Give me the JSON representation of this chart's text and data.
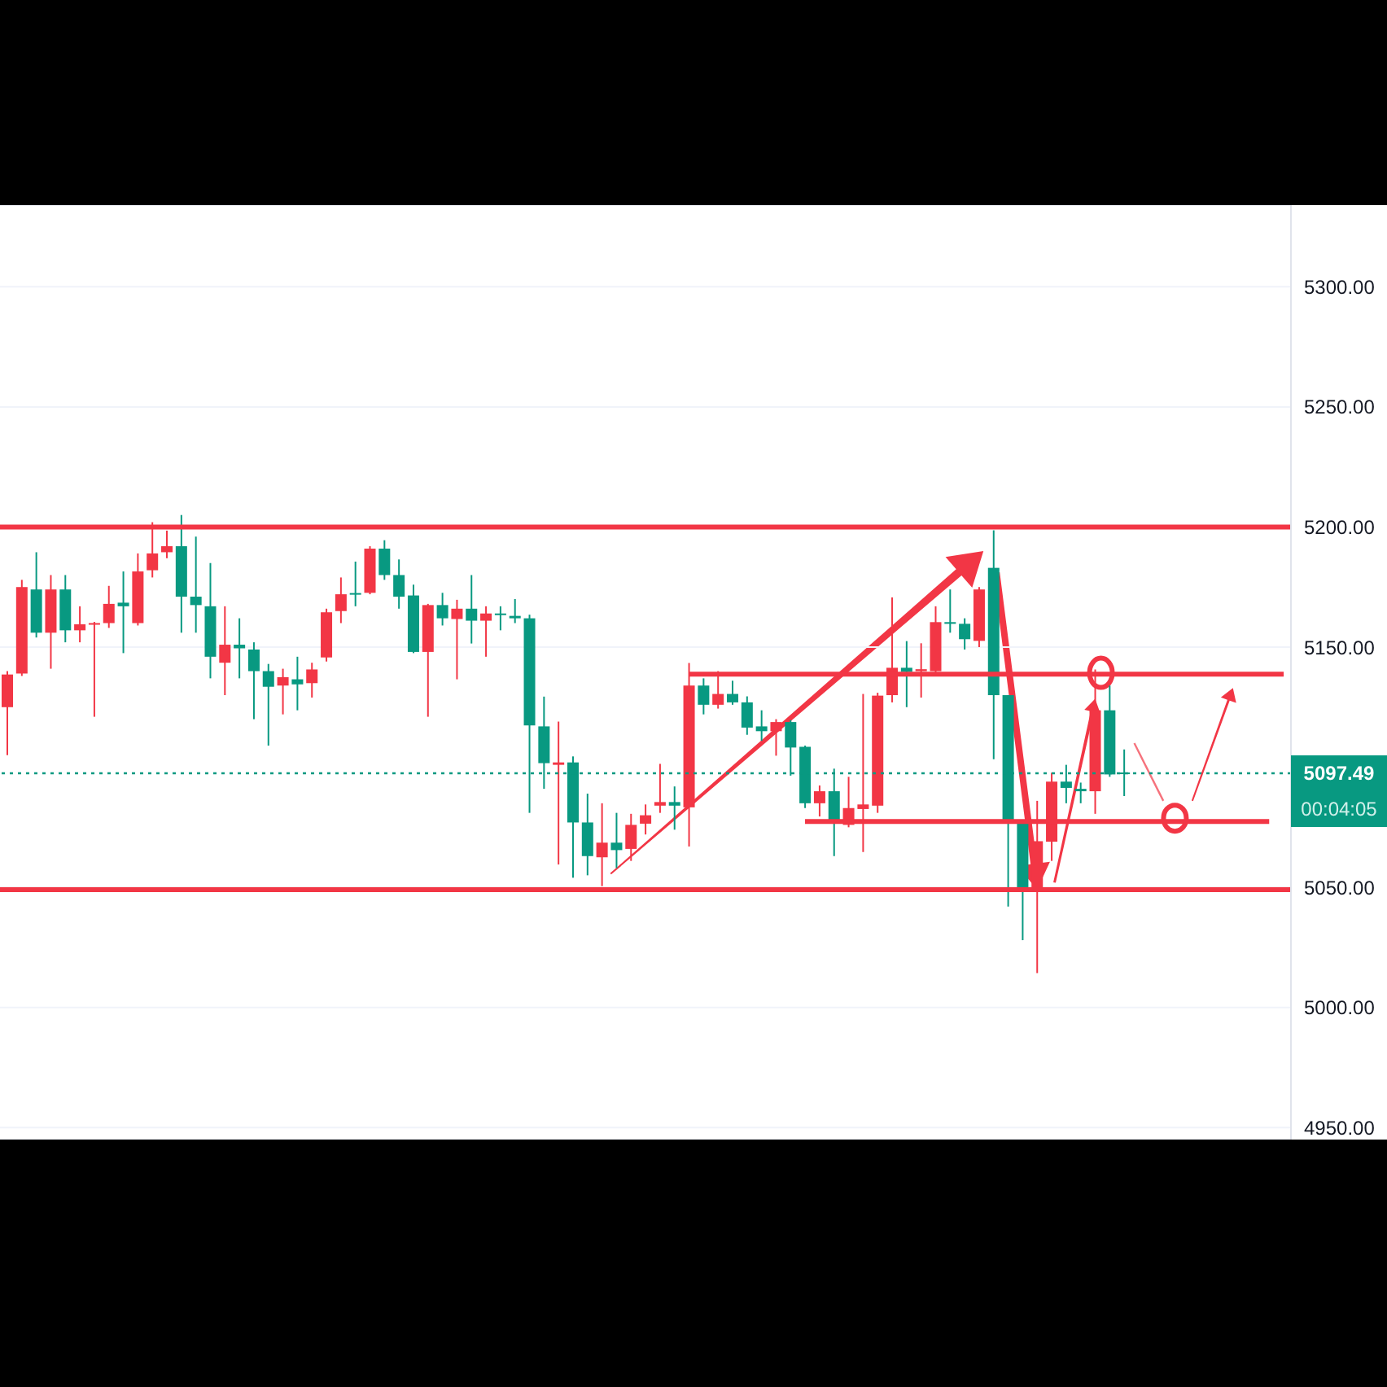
{
  "chart_data": {
    "type": "candlestick",
    "categories": [
      null,
      null,
      null,
      null,
      null,
      null,
      null,
      null,
      null,
      null,
      null,
      null,
      null,
      null,
      null,
      null,
      null,
      null,
      null,
      null,
      null,
      null,
      null,
      null,
      null,
      null,
      null,
      null,
      null,
      null,
      null,
      null,
      null,
      null,
      null,
      null,
      null,
      null,
      null,
      null,
      null,
      null,
      null,
      null,
      null,
      null,
      null,
      null,
      null,
      null,
      null,
      null,
      null,
      null,
      null,
      null,
      null,
      null,
      null,
      null,
      null,
      null,
      null,
      null,
      null,
      null,
      null,
      null,
      null,
      null,
      null,
      null,
      null,
      null,
      null,
      null,
      null,
      null,
      null,
      null,
      null,
      null,
      null,
      null,
      null,
      null,
      null,
      null,
      null
    ],
    "ohlc": [
      [
        5125,
        5140,
        5105,
        5138.6
      ],
      [
        5139,
        5178,
        5138,
        5175
      ],
      [
        5174,
        5189.5,
        5154,
        5156
      ],
      [
        5156,
        5180,
        5141,
        5174
      ],
      [
        5174,
        5180,
        5152,
        5157
      ],
      [
        5157,
        5167,
        5152,
        5159.5
      ],
      [
        5159.5,
        5160.5,
        5121,
        5160
      ],
      [
        5160,
        5175.5,
        5158,
        5168
      ],
      [
        5168.5,
        5181.5,
        5147.5,
        5167
      ],
      [
        5160,
        5189,
        5159,
        5181.5
      ],
      [
        5182,
        5202,
        5179,
        5189
      ],
      [
        5189.5,
        5198.5,
        5187,
        5192
      ],
      [
        5192,
        5205,
        5156,
        5171
      ],
      [
        5171,
        5196,
        5156,
        5167.5
      ],
      [
        5167,
        5185,
        5137,
        5146
      ],
      [
        5143.5,
        5167,
        5130,
        5151
      ],
      [
        5151,
        5162,
        5137,
        5149.5
      ],
      [
        5149,
        5152,
        5120,
        5140
      ],
      [
        5140,
        5143,
        5109,
        5133.5
      ],
      [
        5134,
        5141,
        5122,
        5137.5
      ],
      [
        5136.6,
        5146,
        5123.7,
        5134.5
      ],
      [
        5135,
        5143.5,
        5129,
        5140.7
      ],
      [
        5145.7,
        5166,
        5144,
        5164.5
      ],
      [
        5165,
        5179,
        5160,
        5172
      ],
      [
        5172.5,
        5185.6,
        5167,
        5172
      ],
      [
        5172.6,
        5192,
        5172,
        5191
      ],
      [
        5191,
        5194.5,
        5178,
        5180
      ],
      [
        5180,
        5186.5,
        5166,
        5171
      ],
      [
        5171.5,
        5176,
        5147.5,
        5148
      ],
      [
        5148,
        5168,
        5121,
        5167.5
      ],
      [
        5167.5,
        5172.6,
        5159,
        5162
      ],
      [
        5161.7,
        5169.7,
        5136.6,
        5166
      ],
      [
        5166,
        5180,
        5151.5,
        5161
      ],
      [
        5161,
        5167,
        5146,
        5164
      ],
      [
        5164,
        5167,
        5157,
        5163.5
      ],
      [
        5163,
        5170,
        5160,
        5162
      ],
      [
        5162,
        5163.5,
        5081,
        5117.4
      ],
      [
        5117,
        5129.4,
        5091,
        5101.7
      ],
      [
        5101,
        5119,
        5059.5,
        5102
      ],
      [
        5102,
        5104.5,
        5054,
        5077
      ],
      [
        5077,
        5089,
        5055,
        5063
      ],
      [
        5062.5,
        5085,
        5050.5,
        5068.6
      ],
      [
        5068.6,
        5081,
        5058,
        5065.5
      ],
      [
        5066,
        5080.6,
        5061,
        5076
      ],
      [
        5076.5,
        5084.5,
        5072,
        5080
      ],
      [
        5084,
        5101.4,
        5081,
        5085.5
      ],
      [
        5085.5,
        5092,
        5074,
        5084
      ],
      [
        5083.3,
        5143.4,
        5067,
        5134
      ],
      [
        5134,
        5137,
        5122,
        5126
      ],
      [
        5126,
        5140,
        5124.4,
        5130.5
      ],
      [
        5130.5,
        5136,
        5126,
        5127
      ],
      [
        5127,
        5129.5,
        5113.5,
        5116.5
      ],
      [
        5117,
        5123.7,
        5111,
        5115
      ],
      [
        5115,
        5120,
        5104.8,
        5118.8
      ],
      [
        5118.8,
        5119.6,
        5096.5,
        5108.2
      ],
      [
        5108.5,
        5109,
        5083,
        5085
      ],
      [
        5085,
        5092.4,
        5079.5,
        5090
      ],
      [
        5090,
        5099.4,
        5063,
        5076.5
      ],
      [
        5076,
        5096,
        5075,
        5083
      ],
      [
        5082.6,
        5130.5,
        5064.7,
        5084.5
      ],
      [
        5084,
        5131,
        5081,
        5129.8
      ],
      [
        5130,
        5170.7,
        5127,
        5141.4
      ],
      [
        5141.4,
        5152.5,
        5125,
        5139.7
      ],
      [
        5140,
        5151.6,
        5129,
        5140.8
      ],
      [
        5140,
        5167,
        5138.5,
        5160.4
      ],
      [
        5160.4,
        5174,
        5156,
        5159.7
      ],
      [
        5159.7,
        5162,
        5149,
        5153.3
      ],
      [
        5152.6,
        5175,
        5150,
        5174
      ],
      [
        5183,
        5198.6,
        5103.3,
        5130
      ],
      [
        5130,
        5130,
        5042,
        5077.7
      ],
      [
        5077.7,
        5078,
        5028,
        5050
      ],
      [
        5050,
        5086,
        5014.3,
        5069.2
      ],
      [
        5069,
        5097.7,
        5061,
        5094
      ],
      [
        5094,
        5101,
        5085,
        5091.4
      ],
      [
        5091,
        5093.6,
        5085,
        5090
      ],
      [
        5090,
        5140.7,
        5080.6,
        5123.7
      ],
      [
        5123.7,
        5134,
        5096,
        5097
      ],
      [
        5097.8,
        5107.4,
        5088,
        5097.49
      ],
      null,
      null,
      null,
      null,
      null,
      null,
      null,
      null,
      null,
      null,
      null
    ],
    "colors": [
      "#f23645",
      "#f23645",
      "#089981",
      "#f23645",
      "#089981",
      "#f23645",
      "#f23645",
      "#f23645",
      "#089981",
      "#f23645",
      "#f23645",
      "#f23645",
      "#089981",
      "#089981",
      "#089981",
      "#f23645",
      "#089981",
      "#089981",
      "#089981",
      "#f23645",
      "#089981",
      "#f23645",
      "#f23645",
      "#f23645",
      "#089981",
      "#f23645",
      "#089981",
      "#089981",
      "#089981",
      "#f23645",
      "#089981",
      "#f23645",
      "#089981",
      "#f23645",
      "#089981",
      "#089981",
      "#089981",
      "#089981",
      "#f23645",
      "#089981",
      "#089981",
      "#f23645",
      "#089981",
      "#f23645",
      "#f23645",
      "#f23645",
      "#089981",
      "#f23645",
      "#089981",
      "#f23645",
      "#089981",
      "#089981",
      "#089981",
      "#f23645",
      "#089981",
      "#089981",
      "#f23645",
      "#089981",
      "#f23645",
      "#f23645",
      "#f23645",
      "#f23645",
      "#089981",
      "#f23645",
      "#f23645",
      "#089981",
      "#089981",
      "#f23645",
      "#089981",
      "#089981",
      "#089981",
      "#f23645",
      "#f23645",
      "#089981",
      "#089981",
      "#f23645",
      "#089981",
      "#089981",
      null,
      null,
      null,
      null,
      null,
      null,
      null,
      null,
      null,
      null,
      null
    ],
    "series": [
      {
        "type": "line",
        "color": "#f23645",
        "values": [
          null,
          null,
          null,
          null,
          null,
          null,
          null,
          null,
          null,
          null,
          null,
          null,
          null,
          null,
          null,
          null,
          null,
          null,
          null,
          null,
          null,
          null,
          null,
          null,
          null,
          null,
          null,
          null,
          null,
          null,
          null,
          null,
          null,
          null,
          null,
          null,
          null,
          null,
          null,
          null,
          null,
          null,
          null,
          null,
          null,
          null,
          null,
          5138.7,
          null,
          null,
          null,
          null,
          null,
          null,
          null,
          null,
          null,
          null,
          null,
          null,
          null,
          null,
          null,
          null,
          null,
          null,
          null,
          null,
          null,
          null,
          null,
          null,
          null,
          null,
          null,
          null,
          null,
          null,
          null,
          null,
          null,
          null,
          null,
          null,
          null,
          null,
          null,
          null,
          5138.7
        ]
      },
      {
        "type": "line",
        "color": "#f23645",
        "values": [
          null,
          null,
          null,
          null,
          null,
          null,
          null,
          null,
          null,
          null,
          null,
          null,
          null,
          null,
          null,
          null,
          null,
          null,
          null,
          null,
          null,
          null,
          null,
          null,
          null,
          null,
          null,
          null,
          null,
          null,
          null,
          null,
          null,
          null,
          null,
          null,
          null,
          null,
          null,
          null,
          null,
          null,
          null,
          null,
          null,
          null,
          null,
          null,
          null,
          null,
          null,
          null,
          null,
          null,
          null,
          5077.4,
          null,
          null,
          null,
          null,
          null,
          null,
          null,
          null,
          null,
          null,
          null,
          null,
          null,
          null,
          null,
          null,
          null,
          null,
          null,
          null,
          null,
          null,
          null,
          null,
          null,
          null,
          null,
          null,
          null,
          null,
          null,
          5077.4,
          null
        ]
      }
    ],
    "ref_lines": [
      {
        "axis": "y",
        "value": 5200,
        "color": "#f23645",
        "line_style": "solid"
      },
      {
        "axis": "y",
        "value": 5049,
        "color": "#f23645",
        "line_style": "solid"
      },
      {
        "axis": "y",
        "value": 5097.49,
        "label": "5097.49",
        "color": "#089981",
        "line_style": "dotted"
      }
    ],
    "annotations": [
      "00:04:05"
    ],
    "ylim": [
      4945,
      5334
    ],
    "yticks": [
      {
        "value": 4950,
        "label": "4950.00"
      },
      {
        "value": 5000,
        "label": "5000.00"
      },
      {
        "value": 5050,
        "label": "5050.00"
      },
      {
        "value": 5150,
        "label": "5150.00"
      },
      {
        "value": 5200,
        "label": "5200.00"
      },
      {
        "value": 5250,
        "label": "5250.00"
      },
      {
        "value": 5300,
        "label": "5300.00"
      }
    ],
    "grid": "y"
  }
}
